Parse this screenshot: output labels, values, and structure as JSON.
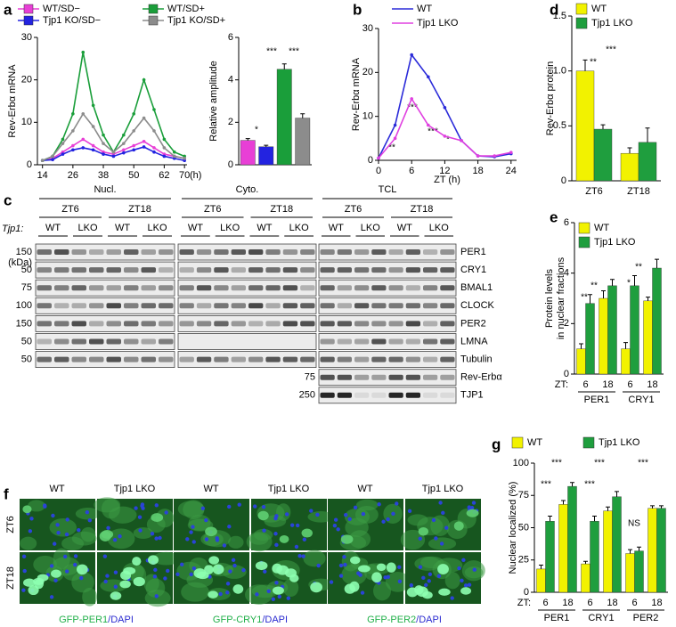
{
  "chart_data": [
    {
      "panel": "a",
      "type": "line",
      "ylabel": "Rev-Erbα mRNA",
      "xlabel": "(h)",
      "x": [
        14,
        18,
        22,
        26,
        30,
        34,
        38,
        42,
        46,
        50,
        54,
        58,
        62,
        66,
        70
      ],
      "xlim": [
        12,
        71
      ],
      "xticks": [
        14,
        26,
        38,
        50,
        62,
        70
      ],
      "ylim": [
        0,
        30
      ],
      "yticks": [
        0,
        10,
        20,
        30
      ],
      "series": [
        {
          "name": "WT/SD−",
          "color": "#e83fd6",
          "values": [
            1,
            1.5,
            3,
            4.5,
            6,
            4.5,
            3,
            2.5,
            3.5,
            4.5,
            5.5,
            4,
            2.5,
            2,
            1.5
          ]
        },
        {
          "name": "Tjp1 KO/SD−",
          "color": "#2323e0",
          "values": [
            1,
            1.2,
            2.5,
            3.5,
            4,
            3.5,
            2.5,
            2,
            2.8,
            3.5,
            4.2,
            3,
            2,
            1.5,
            1
          ]
        },
        {
          "name": "WT/SD+",
          "color": "#1a9e3a",
          "values": [
            1,
            2,
            6,
            12,
            26.5,
            14,
            7,
            3,
            7,
            12,
            20,
            13,
            6,
            3,
            2
          ]
        },
        {
          "name": "Tjp1 KO/SD+",
          "color": "#8c8c8c",
          "values": [
            1,
            2,
            5,
            8,
            12,
            9,
            5,
            3,
            5,
            8,
            11,
            8,
            4,
            2,
            1.5
          ]
        }
      ]
    },
    {
      "type": "bar",
      "ylabel": "Relative amplitude",
      "categories": [
        null,
        null,
        null,
        null
      ],
      "values": [
        1.15,
        0.85,
        4.5,
        2.2
      ],
      "errors": [
        0.08,
        0.07,
        0.25,
        0.2
      ],
      "colors": [
        "#e83fd6",
        "#2323e0",
        "#1a9e3a",
        "#8c8c8c"
      ],
      "ylim": [
        0,
        6
      ],
      "yticks": [
        0,
        2,
        4,
        6
      ],
      "annotations": [
        "*",
        "***",
        "***"
      ]
    },
    {
      "panel": "b",
      "type": "line",
      "ylabel": "Rev-Erbα mRNA",
      "xlabel": "ZT (h)",
      "x": [
        0,
        3,
        6,
        9,
        12,
        15,
        18,
        21,
        24
      ],
      "xlim": [
        0,
        25
      ],
      "xticks": [
        0,
        6,
        12,
        18,
        24
      ],
      "ylim": [
        0,
        30
      ],
      "yticks": [
        0,
        10,
        20,
        30
      ],
      "series": [
        {
          "name": "WT",
          "color": "#2b2bd9",
          "values": [
            0.5,
            8,
            24,
            19,
            12,
            4.5,
            1,
            0.8,
            1.5
          ]
        },
        {
          "name": "Tjp1 LKO",
          "color": "#e040e0",
          "values": [
            0.5,
            5,
            14,
            8,
            5.5,
            4.5,
            1,
            1,
            1.8
          ]
        }
      ],
      "annotations": [
        "**",
        "***",
        "***",
        "*"
      ]
    },
    {
      "panel": "d",
      "type": "bar",
      "ylabel": "Rev-Erbα protein",
      "categories": [
        "ZT6",
        "ZT18"
      ],
      "series": [
        {
          "name": "WT",
          "color": "#f2f200",
          "values": [
            1.0,
            0.25
          ],
          "errors": [
            0.1,
            0.05
          ]
        },
        {
          "name": "Tjp1 LKO",
          "color": "#1f9e3e",
          "values": [
            0.47,
            0.35
          ],
          "errors": [
            0.04,
            0.13
          ]
        }
      ],
      "ylim": [
        0,
        1.5
      ],
      "yticks": [
        0,
        0.5,
        {
          "value": 1,
          "label": "1.0"
        },
        1.5
      ],
      "annotations": [
        "**",
        "***"
      ]
    },
    {
      "panel": "e",
      "type": "bar",
      "ylabel": [
        "Protein levels",
        "in nuclear fractions"
      ],
      "xlabel": "ZT:",
      "categories": [
        "6",
        "18",
        "6",
        "18"
      ],
      "groups": [
        "PER1",
        "CRY1"
      ],
      "series": [
        {
          "name": "WT",
          "color": "#f2f200",
          "values": [
            1.0,
            3.0,
            1.0,
            2.9
          ],
          "errors": [
            0.2,
            0.3,
            0.25,
            0.15
          ]
        },
        {
          "name": "Tjp1 LKO",
          "color": "#1f9e3e",
          "values": [
            2.8,
            3.5,
            3.5,
            4.2
          ],
          "errors": [
            0.35,
            0.25,
            0.4,
            0.35
          ]
        }
      ],
      "ylim": [
        0,
        6
      ],
      "yticks": [
        0,
        2,
        4,
        6
      ],
      "annotations": [
        "**",
        "**",
        "*",
        "**"
      ]
    },
    {
      "panel": "g",
      "type": "bar",
      "ylabel": "Nuclear localized (%)",
      "xlabel": "ZT:",
      "categories": [
        "6",
        "18",
        "6",
        "18",
        "6",
        "18"
      ],
      "groups": [
        "PER1",
        "CRY1",
        "PER2"
      ],
      "series": [
        {
          "name": "WT",
          "color": "#f2f200",
          "values": [
            18,
            68,
            22,
            63,
            30,
            65
          ],
          "errors": [
            3,
            3,
            2,
            3,
            3,
            2
          ]
        },
        {
          "name": "Tjp1 LKO",
          "color": "#1f9e3e",
          "values": [
            55,
            82,
            55,
            74,
            32,
            65
          ],
          "errors": [
            4,
            3,
            4,
            4,
            3,
            2
          ]
        }
      ],
      "ylim": [
        0,
        100
      ],
      "yticks": [
        0,
        25,
        50,
        75,
        100
      ],
      "annotations": [
        "***",
        "***",
        "***",
        "***",
        "***",
        "NS"
      ]
    }
  ],
  "blot": {
    "panel": "c",
    "genotype_label": "Tjp1:",
    "kda": "(kDa)",
    "sections": [
      {
        "name": "Nucl.",
        "timepoints": [
          "ZT6",
          "ZT18"
        ],
        "lanes": [
          "WT",
          "LKO",
          "WT",
          "LKO"
        ]
      },
      {
        "name": "Cyto.",
        "timepoints": [
          "ZT6",
          "ZT18"
        ],
        "lanes": [
          "WT",
          "LKO",
          "WT",
          "LKO"
        ]
      },
      {
        "name": "TCL",
        "timepoints": [
          "ZT6",
          "ZT18"
        ],
        "lanes": [
          "WT",
          "LKO",
          "WT",
          "LKO"
        ]
      }
    ],
    "rows": [
      {
        "marker": "150",
        "protein": "PER1"
      },
      {
        "marker": "50",
        "protein": "CRY1"
      },
      {
        "marker": "75",
        "protein": "BMAL1"
      },
      {
        "marker": "100",
        "protein": "CLOCK"
      },
      {
        "marker": "150",
        "protein": "PER2"
      },
      {
        "marker": "50",
        "protein": "LMNA"
      },
      {
        "marker": "50",
        "protein": "Tubulin"
      },
      {
        "marker": "75",
        "protein": "Rev-Erbα"
      },
      {
        "marker": "250",
        "protein": "TJP1"
      }
    ]
  },
  "micrographs": {
    "panel": "f",
    "timepoints": [
      "ZT6",
      "ZT18"
    ],
    "panels": [
      {
        "stain": "GFP-PER1",
        "counterstain": "/DAPI",
        "genotypes": [
          "WT",
          "Tjp1 LKO"
        ]
      },
      {
        "stain": "GFP-CRY1",
        "counterstain": "/DAPI",
        "genotypes": [
          "WT",
          "Tjp1 LKO"
        ]
      },
      {
        "stain": "GFP-PER2",
        "counterstain": "/DAPI",
        "genotypes": [
          "WT",
          "Tjp1 LKO"
        ]
      }
    ]
  }
}
